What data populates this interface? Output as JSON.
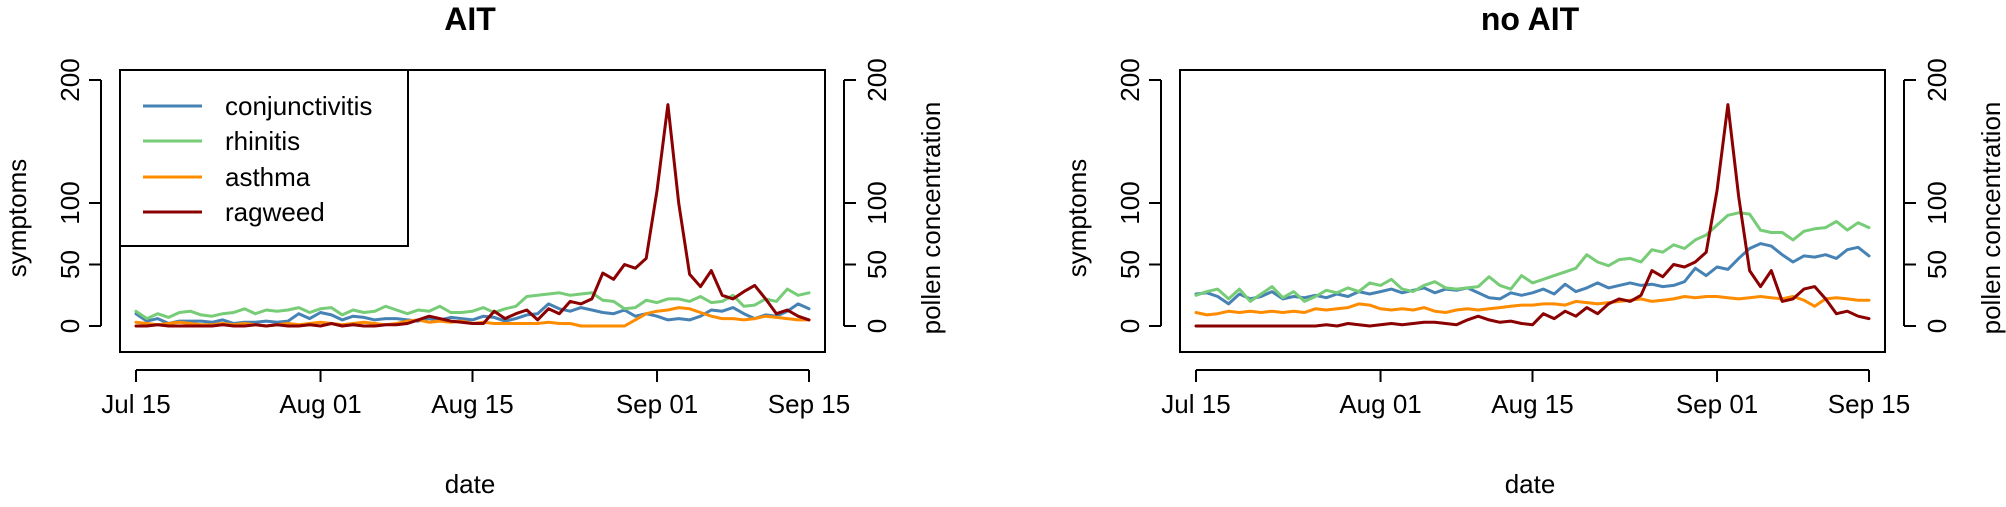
{
  "chart_data": [
    {
      "type": "line",
      "title": "AIT",
      "xlabel": "date",
      "ylabel": "symptoms",
      "y2label": "pollen concentration",
      "xlim": [
        0,
        62
      ],
      "ylim": [
        0,
        200
      ],
      "y2lim": [
        0,
        200
      ],
      "x_ticks": [
        {
          "label": "Jul 15",
          "x": 0
        },
        {
          "label": "Aug 01",
          "x": 17
        },
        {
          "label": "Aug 15",
          "x": 31
        },
        {
          "label": "Sep 01",
          "x": 48
        },
        {
          "label": "Sep 15",
          "x": 62
        }
      ],
      "y_ticks": [
        {
          "label": "0",
          "v": 0
        },
        {
          "label": "50",
          "v": 50
        },
        {
          "label": "100",
          "v": 100
        },
        {
          "label": "200",
          "v": 200
        }
      ],
      "y2_ticks": [
        {
          "label": "0",
          "v": 0
        },
        {
          "label": "50",
          "v": 50
        },
        {
          "label": "100",
          "v": 100
        },
        {
          "label": "200",
          "v": 200
        }
      ],
      "legend": {
        "position": "top-left",
        "entries": [
          "conjunctivitis",
          "rhinitis",
          "asthma",
          "ragweed"
        ]
      },
      "series": [
        {
          "name": "conjunctivitis",
          "color": "#4682b4",
          "axis": "left",
          "values": [
            10,
            4,
            6,
            2,
            4,
            4,
            4,
            3,
            5,
            2,
            3,
            3,
            4,
            3,
            4,
            10,
            6,
            11,
            9,
            5,
            8,
            7,
            5,
            6,
            6,
            5,
            4,
            6,
            5,
            7,
            6,
            5,
            8,
            7,
            4,
            6,
            9,
            10,
            18,
            14,
            12,
            15,
            13,
            11,
            10,
            13,
            8,
            10,
            8,
            5,
            6,
            5,
            8,
            13,
            12,
            15,
            10,
            6,
            9,
            8,
            12,
            18,
            14
          ]
        },
        {
          "name": "rhinitis",
          "color": "#77cc77",
          "axis": "left",
          "values": [
            12,
            6,
            10,
            7,
            11,
            12,
            9,
            8,
            10,
            11,
            14,
            10,
            13,
            12,
            13,
            15,
            11,
            14,
            15,
            9,
            13,
            11,
            12,
            16,
            13,
            10,
            13,
            12,
            16,
            11,
            11,
            12,
            15,
            11,
            14,
            16,
            24,
            25,
            26,
            27,
            25,
            26,
            27,
            21,
            20,
            14,
            15,
            21,
            19,
            22,
            22,
            20,
            24,
            19,
            20,
            25,
            16,
            17,
            22,
            20,
            30,
            25,
            27
          ]
        },
        {
          "name": "asthma",
          "color": "#ff8c00",
          "axis": "left",
          "values": [
            3,
            2,
            1,
            2,
            3,
            2,
            1,
            1,
            2,
            1,
            2,
            1,
            0,
            1,
            2,
            1,
            2,
            3,
            2,
            1,
            2,
            3,
            2,
            1,
            2,
            4,
            5,
            3,
            4,
            3,
            4,
            2,
            3,
            2,
            2,
            2,
            2,
            2,
            3,
            2,
            2,
            0,
            0,
            0,
            0,
            0,
            5,
            10,
            12,
            13,
            15,
            14,
            11,
            8,
            6,
            6,
            5,
            6,
            8,
            7,
            6,
            5,
            5
          ]
        },
        {
          "name": "ragweed",
          "color": "#8b0000",
          "axis": "right",
          "values": [
            0,
            0,
            1,
            0,
            0,
            0,
            0,
            0,
            1,
            0,
            0,
            1,
            0,
            1,
            0,
            0,
            1,
            0,
            2,
            0,
            1,
            0,
            0,
            1,
            1,
            2,
            5,
            8,
            6,
            4,
            3,
            2,
            2,
            12,
            6,
            10,
            13,
            5,
            14,
            10,
            20,
            18,
            22,
            43,
            38,
            50,
            47,
            55,
            110,
            180,
            100,
            42,
            32,
            45,
            25,
            22,
            28,
            33,
            22,
            10,
            13,
            8,
            5
          ]
        }
      ]
    },
    {
      "type": "line",
      "title": "no AIT",
      "xlabel": "date",
      "ylabel": "symptoms",
      "y2label": "pollen concentration",
      "xlim": [
        0,
        62
      ],
      "ylim": [
        0,
        200
      ],
      "y2lim": [
        0,
        200
      ],
      "x_ticks": [
        {
          "label": "Jul 15",
          "x": 0
        },
        {
          "label": "Aug 01",
          "x": 17
        },
        {
          "label": "Aug 15",
          "x": 31
        },
        {
          "label": "Sep 01",
          "x": 48
        },
        {
          "label": "Sep 15",
          "x": 62
        }
      ],
      "y_ticks": [
        {
          "label": "0",
          "v": 0
        },
        {
          "label": "50",
          "v": 50
        },
        {
          "label": "100",
          "v": 100
        },
        {
          "label": "200",
          "v": 200
        }
      ],
      "y2_ticks": [
        {
          "label": "0",
          "v": 0
        },
        {
          "label": "50",
          "v": 50
        },
        {
          "label": "100",
          "v": 100
        },
        {
          "label": "200",
          "v": 200
        }
      ],
      "series": [
        {
          "name": "conjunctivitis",
          "color": "#4682b4",
          "axis": "left",
          "values": [
            26,
            27,
            24,
            18,
            26,
            22,
            24,
            28,
            22,
            24,
            23,
            25,
            23,
            26,
            24,
            28,
            26,
            28,
            30,
            27,
            29,
            31,
            27,
            30,
            29,
            31,
            27,
            23,
            22,
            27,
            25,
            27,
            30,
            26,
            34,
            28,
            31,
            35,
            31,
            33,
            35,
            33,
            34,
            32,
            33,
            36,
            47,
            41,
            48,
            46,
            55,
            63,
            67,
            65,
            58,
            52,
            57,
            56,
            58,
            55,
            62,
            64,
            57
          ]
        },
        {
          "name": "rhinitis",
          "color": "#77cc77",
          "axis": "left",
          "values": [
            25,
            28,
            30,
            22,
            30,
            20,
            26,
            32,
            23,
            28,
            20,
            24,
            29,
            27,
            31,
            28,
            35,
            33,
            38,
            30,
            28,
            33,
            36,
            31,
            30,
            31,
            32,
            40,
            33,
            30,
            41,
            35,
            38,
            41,
            44,
            47,
            58,
            52,
            49,
            54,
            55,
            52,
            62,
            60,
            66,
            63,
            70,
            74,
            82,
            90,
            92,
            91,
            78,
            76,
            76,
            70,
            77,
            79,
            80,
            85,
            78,
            84,
            80
          ]
        },
        {
          "name": "asthma",
          "color": "#ff8c00",
          "axis": "left",
          "values": [
            11,
            9,
            10,
            12,
            11,
            12,
            11,
            12,
            11,
            12,
            11,
            14,
            13,
            14,
            15,
            18,
            17,
            14,
            13,
            14,
            13,
            15,
            12,
            11,
            13,
            14,
            13,
            14,
            15,
            16,
            17,
            17,
            18,
            18,
            17,
            20,
            19,
            18,
            19,
            20,
            21,
            22,
            20,
            21,
            22,
            24,
            23,
            24,
            24,
            23,
            22,
            23,
            24,
            23,
            22,
            24,
            21,
            16,
            22,
            23,
            22,
            21,
            21
          ]
        },
        {
          "name": "ragweed",
          "color": "#8b0000",
          "axis": "right",
          "values": [
            0,
            0,
            0,
            0,
            0,
            0,
            0,
            0,
            0,
            0,
            0,
            0,
            1,
            0,
            2,
            1,
            0,
            1,
            2,
            1,
            2,
            3,
            3,
            2,
            1,
            5,
            8,
            5,
            3,
            4,
            2,
            1,
            10,
            6,
            12,
            8,
            15,
            10,
            18,
            22,
            20,
            25,
            45,
            40,
            50,
            48,
            52,
            60,
            110,
            180,
            105,
            45,
            32,
            45,
            20,
            22,
            30,
            32,
            22,
            10,
            12,
            8,
            6
          ]
        }
      ]
    }
  ]
}
